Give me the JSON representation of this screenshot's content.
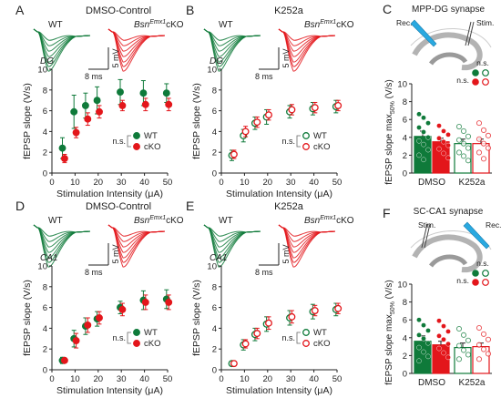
{
  "colors": {
    "wt": "#0f7a3a",
    "cko": "#e3161b",
    "axis": "#222222",
    "grid": "#999999"
  },
  "panels": {
    "A": {
      "letter": "A",
      "title": "DMSO-Control",
      "region": "DG",
      "wt": "WT",
      "cko_prefix": "Bsn",
      "cko_sup": "Emx1",
      "cko_suffix": "cKO",
      "scale_time": "8 ms",
      "scale_volt": "5 mV"
    },
    "B": {
      "letter": "B",
      "title": "K252a",
      "region": "DG",
      "wt": "WT",
      "cko_prefix": "Bsn",
      "cko_sup": "Emx1",
      "cko_suffix": "cKO",
      "scale_time": "8 ms",
      "scale_volt": "5 mV"
    },
    "C": {
      "letter": "C",
      "title": "MPP-DG synapse",
      "rec": "Rec.",
      "stim": "Stim.",
      "ylabel_main": "fEPSP slope max",
      "ylabel_sub": "50%",
      "ylabel_unit": " (V/s)",
      "ns_top": "n.s.",
      "cats": [
        "DMSO",
        "K252a"
      ]
    },
    "D": {
      "letter": "D",
      "title": "DMSO-Control",
      "region": "CA1",
      "wt": "WT",
      "cko_prefix": "Bsn",
      "cko_sup": "Emx1",
      "cko_suffix": "cKO",
      "scale_time": "8 ms",
      "scale_volt": "5 mV"
    },
    "E": {
      "letter": "E",
      "title": "K252a",
      "region": "CA1",
      "wt": "WT",
      "cko_prefix": "Bsn",
      "cko_sup": "Emx1",
      "cko_suffix": "cKO",
      "scale_time": "8 ms",
      "scale_volt": "5 mV"
    },
    "F": {
      "letter": "F",
      "title": "SC-CA1 synapse",
      "rec": "Rec.",
      "stim": "Stim.",
      "ylabel_main": "fEPSP slope max",
      "ylabel_sub": "50%",
      "ylabel_unit": " (V/s)",
      "ns_top": "n.s.",
      "cats": [
        "DMSO",
        "K252a"
      ]
    }
  },
  "legend": {
    "wt": "WT",
    "cko": "cKO",
    "ns": "n.s."
  },
  "chart_data": [
    {
      "id": "A",
      "type": "scatter",
      "title": "DMSO-Control",
      "xlabel": "Stimulation Intensity (μA)",
      "ylabel": "fEPSP slope (V/s)",
      "xlim": [
        0,
        50
      ],
      "ylim": [
        0,
        10
      ],
      "xticks": [
        0,
        10,
        20,
        30,
        40,
        50
      ],
      "yticks": [
        0,
        2,
        4,
        6,
        8,
        10
      ],
      "filled": true,
      "x": [
        5,
        10,
        15,
        20,
        30,
        40,
        50
      ],
      "series": [
        {
          "name": "WT",
          "values": [
            2.4,
            5.9,
            6.5,
            7.0,
            7.8,
            7.7,
            7.7
          ],
          "err": [
            1.0,
            1.6,
            1.2,
            1.3,
            1.2,
            1.2,
            0.9
          ]
        },
        {
          "name": "cKO",
          "values": [
            1.4,
            3.9,
            5.2,
            5.9,
            6.5,
            6.6,
            6.6
          ],
          "err": [
            0.4,
            0.5,
            0.6,
            0.6,
            0.5,
            0.6,
            0.6
          ]
        }
      ]
    },
    {
      "id": "B",
      "type": "scatter",
      "title": "K252a",
      "xlabel": "Stimulation Intensity (μA)",
      "ylabel": "fEPSP slope (V/s)",
      "xlim": [
        0,
        50
      ],
      "ylim": [
        0,
        10
      ],
      "xticks": [
        0,
        10,
        20,
        30,
        40,
        50
      ],
      "yticks": [
        0,
        2,
        4,
        6,
        8,
        10
      ],
      "filled": false,
      "x": [
        5,
        10,
        15,
        20,
        30,
        40,
        50
      ],
      "series": [
        {
          "name": "WT",
          "values": [
            1.7,
            3.6,
            4.8,
            5.4,
            5.9,
            6.2,
            6.4
          ],
          "err": [
            0.5,
            0.6,
            0.6,
            0.7,
            0.6,
            0.6,
            0.6
          ]
        },
        {
          "name": "cKO",
          "values": [
            1.8,
            4.0,
            4.9,
            5.6,
            6.1,
            6.3,
            6.5
          ],
          "err": [
            0.4,
            0.5,
            0.5,
            0.5,
            0.5,
            0.5,
            0.5
          ]
        }
      ]
    },
    {
      "id": "C",
      "type": "bar",
      "title": "MPP-DG synapse",
      "ylabel": "fEPSP slope max50% (V/s)",
      "ylim": [
        0,
        10
      ],
      "yticks": [
        0,
        2,
        4,
        6,
        8,
        10
      ],
      "categories": [
        "DMSO",
        "K252a"
      ],
      "series": [
        {
          "name": "WT",
          "values": [
            4.1,
            3.3
          ],
          "err": [
            0.6,
            0.5
          ],
          "points": [
            [
              6.6,
              6.2,
              5.6,
              5.1,
              4.6,
              4.0,
              3.6,
              3.2,
              2.6,
              2.0,
              1.5
            ],
            [
              5.2,
              4.7,
              4.1,
              3.7,
              3.3,
              2.8,
              2.3,
              1.9,
              1.4
            ]
          ]
        },
        {
          "name": "cKO",
          "values": [
            3.5,
            3.3
          ],
          "err": [
            0.4,
            0.5
          ],
          "points": [
            [
              5.3,
              4.7,
              4.3,
              3.9,
              3.5,
              3.1,
              2.7,
              2.2,
              1.7
            ],
            [
              5.6,
              4.8,
              4.2,
              3.8,
              3.3,
              2.8,
              2.3,
              1.6
            ]
          ]
        }
      ]
    },
    {
      "id": "D",
      "type": "scatter",
      "title": "DMSO-Control",
      "xlabel": "Stimulation Intensity (μA)",
      "ylabel": "fEPSP slope (V/s)",
      "xlim": [
        0,
        50
      ],
      "ylim": [
        0,
        10
      ],
      "xticks": [
        0,
        10,
        20,
        30,
        40,
        50
      ],
      "yticks": [
        0,
        2,
        4,
        6,
        8,
        10
      ],
      "filled": true,
      "x": [
        5,
        10,
        15,
        20,
        30,
        40,
        50
      ],
      "series": [
        {
          "name": "WT",
          "values": [
            0.9,
            3.0,
            4.2,
            4.9,
            6.0,
            6.7,
            6.8
          ],
          "err": [
            0.3,
            0.8,
            0.8,
            0.7,
            0.6,
            0.9,
            0.9
          ]
        },
        {
          "name": "cKO",
          "values": [
            0.9,
            2.8,
            4.3,
            5.0,
            5.8,
            6.5,
            6.5
          ],
          "err": [
            0.2,
            0.7,
            0.7,
            0.6,
            0.6,
            0.7,
            0.7
          ]
        }
      ]
    },
    {
      "id": "E",
      "type": "scatter",
      "title": "K252a",
      "xlabel": "Stimulation Intensity (μA)",
      "ylabel": "fEPSP slope (V/s)",
      "xlim": [
        0,
        50
      ],
      "ylim": [
        0,
        10
      ],
      "xticks": [
        0,
        10,
        20,
        30,
        40,
        50
      ],
      "yticks": [
        0,
        2,
        4,
        6,
        8,
        10
      ],
      "filled": false,
      "x": [
        5,
        10,
        15,
        20,
        30,
        40,
        50
      ],
      "series": [
        {
          "name": "WT",
          "values": [
            0.6,
            2.4,
            3.4,
            4.4,
            5.0,
            5.6,
            5.8
          ],
          "err": [
            0.2,
            0.5,
            0.6,
            0.7,
            0.7,
            0.7,
            0.6
          ]
        },
        {
          "name": "cKO",
          "values": [
            0.6,
            2.5,
            3.5,
            4.5,
            5.1,
            5.7,
            5.9
          ],
          "err": [
            0.2,
            0.4,
            0.5,
            0.6,
            0.6,
            0.5,
            0.5
          ]
        }
      ]
    },
    {
      "id": "F",
      "type": "bar",
      "title": "SC-CA1 synapse",
      "ylabel": "fEPSP slope max50% (V/s)",
      "ylim": [
        0,
        10
      ],
      "yticks": [
        0,
        2,
        4,
        6,
        8,
        10
      ],
      "categories": [
        "DMSO",
        "K252a"
      ],
      "series": [
        {
          "name": "WT",
          "values": [
            3.6,
            2.9
          ],
          "err": [
            0.6,
            0.5
          ],
          "points": [
            [
              6.0,
              5.4,
              4.8,
              4.3,
              3.9,
              3.4,
              2.9,
              2.4,
              1.9,
              1.4
            ],
            [
              5.0,
              4.3,
              3.7,
              3.1,
              2.6,
              2.1,
              1.6
            ]
          ]
        },
        {
          "name": "cKO",
          "values": [
            3.2,
            3.0
          ],
          "err": [
            0.4,
            0.4
          ],
          "points": [
            [
              5.9,
              5.3,
              4.7,
              4.2,
              3.8,
              3.3,
              2.8,
              2.3,
              1.8
            ],
            [
              5.1,
              4.4,
              3.8,
              3.2,
              2.7,
              2.2,
              1.6
            ]
          ]
        }
      ]
    }
  ]
}
